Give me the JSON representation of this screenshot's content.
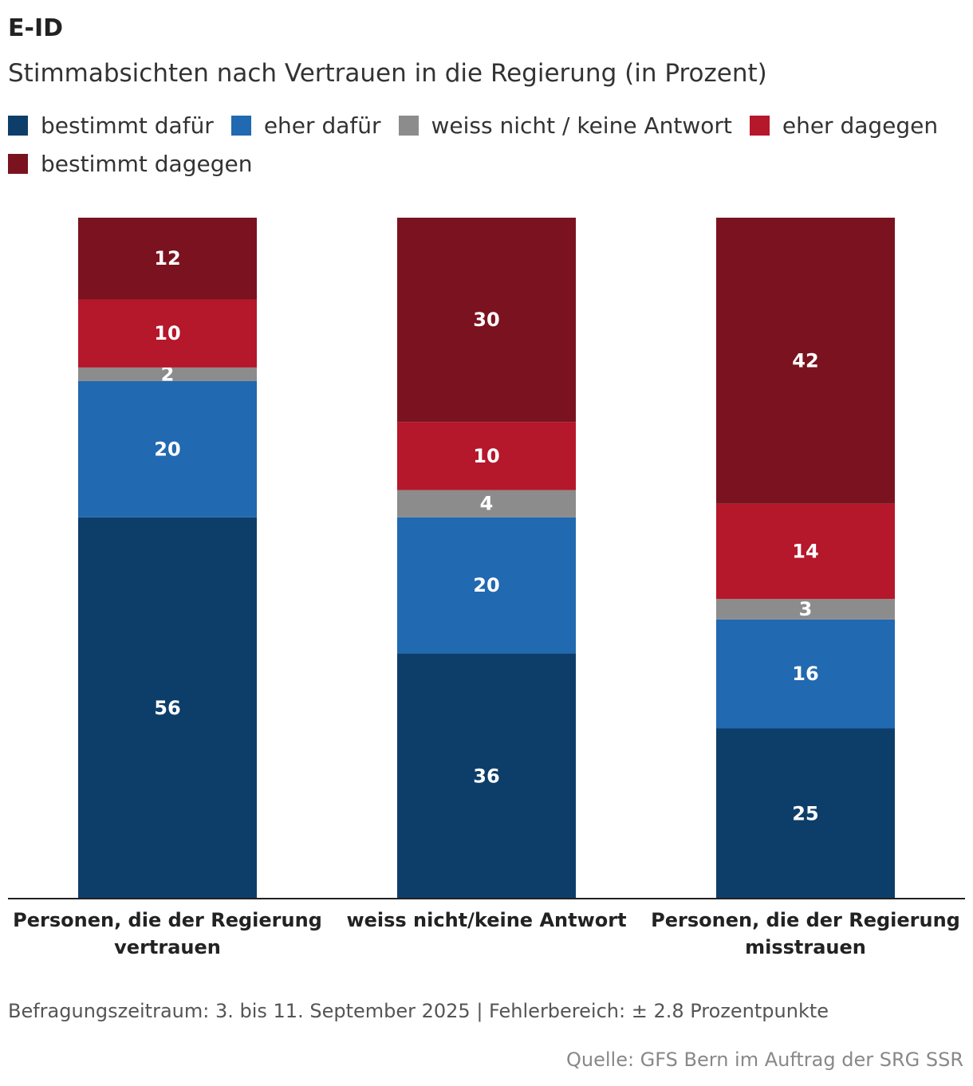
{
  "title": "E-ID",
  "subtitle": "Stimmabsichten nach Vertrauen in die Regierung (in Prozent)",
  "footnote": "Befragungszeitraum: 3. bis 11. September 2025 | Fehlerbereich: ± 2.8 Prozentpunkte",
  "source": "Quelle: GFS Bern im Auftrag der SRG SSR",
  "legend": [
    {
      "label": "bestimmt dafür",
      "color": "#0d3e6a"
    },
    {
      "label": "eher dafür",
      "color": "#2169b0"
    },
    {
      "label": "weiss nicht / keine Antwort",
      "color": "#8c8c8c"
    },
    {
      "label": "eher dagegen",
      "color": "#b5172b"
    },
    {
      "label": "bestimmt dagegen",
      "color": "#7a131f"
    }
  ],
  "chart_data": {
    "type": "bar",
    "stacked": true,
    "title": "E-ID",
    "subtitle": "Stimmabsichten nach Vertrauen in die Regierung (in Prozent)",
    "categories": [
      [
        "Personen, die der Regierung",
        "vertrauen"
      ],
      [
        "weiss nicht/keine Antwort"
      ],
      [
        "Personen, die der Regierung",
        "misstrauen"
      ]
    ],
    "series": [
      {
        "name": "bestimmt dafür",
        "color": "#0d3e6a",
        "values": [
          56,
          36,
          25
        ]
      },
      {
        "name": "eher dafür",
        "color": "#2169b0",
        "values": [
          20,
          20,
          16
        ]
      },
      {
        "name": "weiss nicht / keine Antwort",
        "color": "#8c8c8c",
        "values": [
          2,
          4,
          3
        ]
      },
      {
        "name": "eher dagegen",
        "color": "#b5172b",
        "values": [
          10,
          10,
          14
        ]
      },
      {
        "name": "bestimmt dagegen",
        "color": "#7a131f",
        "values": [
          12,
          30,
          42
        ]
      }
    ],
    "ylim": [
      0,
      100
    ],
    "xlabel": "",
    "ylabel": "",
    "grid": false,
    "legend_position": "top-left"
  }
}
